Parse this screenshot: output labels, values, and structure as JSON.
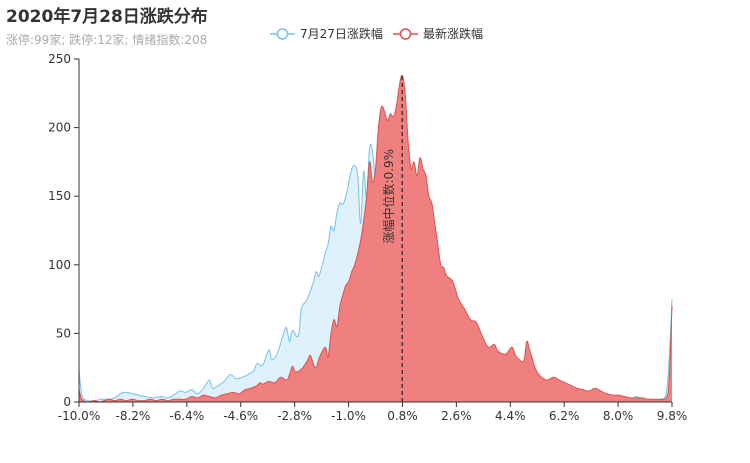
{
  "chart_data": {
    "type": "area",
    "title": "2020年7月28日涨跌分布",
    "subtitle": "涨停:99家; 跌停:12家; 情绪指数:208",
    "x_range": [
      -10.0,
      10.0
    ],
    "ylim": [
      0,
      250
    ],
    "y_ticks": [
      0,
      50,
      100,
      150,
      200,
      250
    ],
    "x_ticks": [
      "-10.0%",
      "-8.2%",
      "-6.4%",
      "-4.6%",
      "-2.8%",
      "-1.0%",
      "0.8%",
      "2.6%",
      "4.4%",
      "6.2%",
      "8.0%",
      "9.8%"
    ],
    "legend_position": "top-center",
    "grid": false,
    "median": {
      "x": 0.9,
      "label": "涨幅中位数:0.9%"
    },
    "series": [
      {
        "name": "7月27日涨跌幅",
        "color": "#74c3e8",
        "fill": "#dcf0fa",
        "points": [
          [
            -10.0,
            24
          ],
          [
            -9.9,
            5
          ],
          [
            -9.7,
            1
          ],
          [
            -9.5,
            1
          ],
          [
            -9.2,
            2
          ],
          [
            -9.0,
            2
          ],
          [
            -8.8,
            3
          ],
          [
            -8.5,
            7
          ],
          [
            -8.2,
            6
          ],
          [
            -8.0,
            5
          ],
          [
            -7.8,
            4
          ],
          [
            -7.5,
            3
          ],
          [
            -7.2,
            4
          ],
          [
            -7.0,
            3
          ],
          [
            -6.8,
            5
          ],
          [
            -6.6,
            8
          ],
          [
            -6.4,
            7
          ],
          [
            -6.2,
            9
          ],
          [
            -6.0,
            6
          ],
          [
            -5.8,
            10
          ],
          [
            -5.6,
            16
          ],
          [
            -5.5,
            10
          ],
          [
            -5.3,
            12
          ],
          [
            -5.1,
            15
          ],
          [
            -4.9,
            20
          ],
          [
            -4.7,
            17
          ],
          [
            -4.5,
            18
          ],
          [
            -4.3,
            20
          ],
          [
            -4.1,
            23
          ],
          [
            -4.0,
            28
          ],
          [
            -3.8,
            27
          ],
          [
            -3.6,
            38
          ],
          [
            -3.5,
            31
          ],
          [
            -3.3,
            36
          ],
          [
            -3.1,
            50
          ],
          [
            -3.0,
            54
          ],
          [
            -2.9,
            44
          ],
          [
            -2.8,
            52
          ],
          [
            -2.6,
            48
          ],
          [
            -2.5,
            68
          ],
          [
            -2.3,
            75
          ],
          [
            -2.1,
            87
          ],
          [
            -2.0,
            95
          ],
          [
            -1.9,
            92
          ],
          [
            -1.7,
            108
          ],
          [
            -1.6,
            115
          ],
          [
            -1.5,
            128
          ],
          [
            -1.4,
            125
          ],
          [
            -1.3,
            138
          ],
          [
            -1.2,
            145
          ],
          [
            -1.1,
            144
          ],
          [
            -1.0,
            150
          ],
          [
            -0.9,
            160
          ],
          [
            -0.8,
            170
          ],
          [
            -0.7,
            172
          ],
          [
            -0.6,
            165
          ],
          [
            -0.5,
            130
          ],
          [
            -0.4,
            168
          ],
          [
            -0.3,
            150
          ],
          [
            -0.2,
            185
          ],
          [
            -0.1,
            182
          ],
          [
            0.0,
            160
          ],
          [
            0.1,
            150
          ],
          [
            0.2,
            140
          ],
          [
            0.3,
            120
          ],
          [
            0.4,
            108
          ],
          [
            0.5,
            105
          ],
          [
            0.6,
            103
          ],
          [
            0.7,
            95
          ],
          [
            0.8,
            110
          ],
          [
            0.9,
            105
          ],
          [
            1.0,
            108
          ],
          [
            1.1,
            103
          ],
          [
            1.2,
            100
          ],
          [
            1.3,
            88
          ],
          [
            1.4,
            84
          ],
          [
            1.5,
            70
          ],
          [
            1.6,
            60
          ],
          [
            1.7,
            72
          ],
          [
            1.8,
            60
          ],
          [
            1.9,
            50
          ],
          [
            2.0,
            48
          ],
          [
            2.2,
            45
          ],
          [
            2.4,
            42
          ],
          [
            2.6,
            40
          ],
          [
            2.8,
            36
          ],
          [
            3.0,
            35
          ],
          [
            3.2,
            28
          ],
          [
            3.4,
            26
          ],
          [
            3.6,
            25
          ],
          [
            3.8,
            24
          ],
          [
            4.0,
            22
          ],
          [
            4.2,
            21
          ],
          [
            4.4,
            25
          ],
          [
            4.5,
            18
          ],
          [
            4.6,
            14
          ],
          [
            4.8,
            22
          ],
          [
            5.0,
            26
          ],
          [
            5.2,
            15
          ],
          [
            5.4,
            12
          ],
          [
            5.6,
            12
          ],
          [
            5.8,
            10
          ],
          [
            6.0,
            11
          ],
          [
            6.2,
            8
          ],
          [
            6.4,
            8
          ],
          [
            6.6,
            7
          ],
          [
            6.8,
            5
          ],
          [
            7.0,
            6
          ],
          [
            7.2,
            5
          ],
          [
            7.4,
            4
          ],
          [
            7.6,
            4
          ],
          [
            7.8,
            3
          ],
          [
            8.0,
            3
          ],
          [
            8.2,
            3
          ],
          [
            8.4,
            2
          ],
          [
            8.6,
            2
          ],
          [
            8.8,
            4
          ],
          [
            9.0,
            2
          ],
          [
            9.2,
            2
          ],
          [
            9.4,
            2
          ],
          [
            9.6,
            2
          ],
          [
            9.8,
            6
          ],
          [
            9.9,
            30
          ],
          [
            10.0,
            75
          ]
        ]
      },
      {
        "name": "最新涨跌幅",
        "color": "#d9534f",
        "fill": "#f08080",
        "points": [
          [
            -10.0,
            9
          ],
          [
            -9.9,
            2
          ],
          [
            -9.7,
            0
          ],
          [
            -9.5,
            1
          ],
          [
            -9.3,
            0
          ],
          [
            -9.0,
            2
          ],
          [
            -8.8,
            1
          ],
          [
            -8.6,
            2
          ],
          [
            -8.4,
            1
          ],
          [
            -8.2,
            2
          ],
          [
            -8.0,
            1
          ],
          [
            -7.8,
            1
          ],
          [
            -7.6,
            2
          ],
          [
            -7.4,
            1
          ],
          [
            -7.2,
            2
          ],
          [
            -7.0,
            1
          ],
          [
            -6.8,
            2
          ],
          [
            -6.6,
            2
          ],
          [
            -6.4,
            2
          ],
          [
            -6.2,
            4
          ],
          [
            -6.0,
            3
          ],
          [
            -5.8,
            5
          ],
          [
            -5.6,
            4
          ],
          [
            -5.4,
            3
          ],
          [
            -5.2,
            5
          ],
          [
            -5.0,
            6
          ],
          [
            -4.8,
            7
          ],
          [
            -4.6,
            6
          ],
          [
            -4.4,
            9
          ],
          [
            -4.2,
            10
          ],
          [
            -4.0,
            12
          ],
          [
            -3.9,
            14
          ],
          [
            -3.8,
            13
          ],
          [
            -3.6,
            15
          ],
          [
            -3.4,
            14
          ],
          [
            -3.2,
            18
          ],
          [
            -3.0,
            16
          ],
          [
            -2.9,
            20
          ],
          [
            -2.8,
            26
          ],
          [
            -2.7,
            22
          ],
          [
            -2.5,
            24
          ],
          [
            -2.3,
            30
          ],
          [
            -2.2,
            34
          ],
          [
            -2.1,
            28
          ],
          [
            -2.0,
            25
          ],
          [
            -1.9,
            32
          ],
          [
            -1.7,
            40
          ],
          [
            -1.6,
            33
          ],
          [
            -1.5,
            50
          ],
          [
            -1.4,
            60
          ],
          [
            -1.3,
            55
          ],
          [
            -1.2,
            70
          ],
          [
            -1.1,
            78
          ],
          [
            -1.0,
            85
          ],
          [
            -0.9,
            88
          ],
          [
            -0.8,
            95
          ],
          [
            -0.7,
            100
          ],
          [
            -0.6,
            108
          ],
          [
            -0.5,
            118
          ],
          [
            -0.4,
            132
          ],
          [
            -0.3,
            150
          ],
          [
            -0.2,
            175
          ],
          [
            -0.1,
            160
          ],
          [
            0.0,
            170
          ],
          [
            0.1,
            200
          ],
          [
            0.2,
            215
          ],
          [
            0.3,
            212
          ],
          [
            0.4,
            205
          ],
          [
            0.5,
            210
          ],
          [
            0.6,
            208
          ],
          [
            0.7,
            215
          ],
          [
            0.8,
            230
          ],
          [
            0.9,
            238
          ],
          [
            1.0,
            225
          ],
          [
            1.1,
            190
          ],
          [
            1.2,
            170
          ],
          [
            1.3,
            175
          ],
          [
            1.4,
            165
          ],
          [
            1.5,
            178
          ],
          [
            1.6,
            170
          ],
          [
            1.7,
            165
          ],
          [
            1.8,
            150
          ],
          [
            1.9,
            145
          ],
          [
            2.0,
            130
          ],
          [
            2.1,
            115
          ],
          [
            2.2,
            100
          ],
          [
            2.3,
            98
          ],
          [
            2.4,
            92
          ],
          [
            2.6,
            88
          ],
          [
            2.8,
            75
          ],
          [
            3.0,
            68
          ],
          [
            3.2,
            60
          ],
          [
            3.4,
            58
          ],
          [
            3.6,
            48
          ],
          [
            3.8,
            40
          ],
          [
            4.0,
            42
          ],
          [
            4.1,
            38
          ],
          [
            4.2,
            36
          ],
          [
            4.4,
            35
          ],
          [
            4.6,
            40
          ],
          [
            4.7,
            35
          ],
          [
            4.8,
            32
          ],
          [
            5.0,
            30
          ],
          [
            5.1,
            44
          ],
          [
            5.2,
            38
          ],
          [
            5.4,
            24
          ],
          [
            5.6,
            18
          ],
          [
            5.8,
            16
          ],
          [
            6.0,
            18
          ],
          [
            6.2,
            16
          ],
          [
            6.4,
            14
          ],
          [
            6.6,
            12
          ],
          [
            6.8,
            10
          ],
          [
            7.0,
            9
          ],
          [
            7.2,
            8
          ],
          [
            7.4,
            10
          ],
          [
            7.6,
            8
          ],
          [
            7.8,
            6
          ],
          [
            8.0,
            5
          ],
          [
            8.2,
            5
          ],
          [
            8.4,
            4
          ],
          [
            8.6,
            3
          ],
          [
            8.8,
            3
          ],
          [
            9.0,
            3
          ],
          [
            9.2,
            2
          ],
          [
            9.4,
            2
          ],
          [
            9.6,
            2
          ],
          [
            9.8,
            3
          ],
          [
            9.9,
            15
          ],
          [
            10.0,
            70
          ]
        ]
      }
    ]
  }
}
